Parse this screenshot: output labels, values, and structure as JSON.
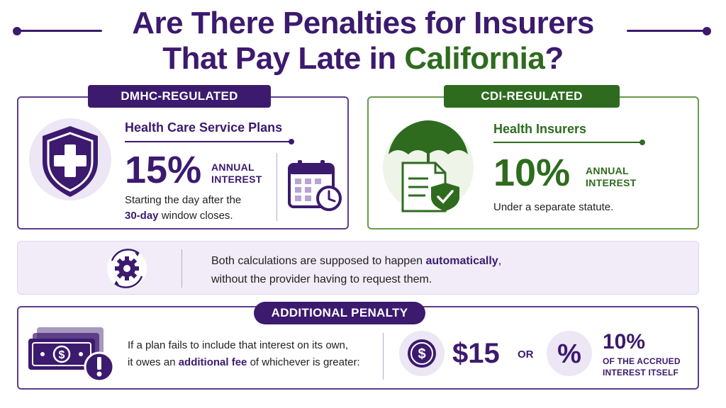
{
  "title": {
    "line1": "Are There Penalties for Insurers",
    "line2_pre": "That Pay Late in ",
    "line2_accent": "California",
    "line2_post": "?"
  },
  "dmhc": {
    "badge": "DMHC-REGULATED",
    "heading": "Health Care Service Plans",
    "rate": "15%",
    "annual": "ANNUAL",
    "interest": "INTEREST",
    "desc_line1": "Starting the day after the",
    "desc_highlight": "30-day",
    "desc_line2_post": " window closes.",
    "shield_icon": "shield-cross-icon",
    "calendar_icon": "calendar-clock-icon"
  },
  "cdi": {
    "badge": "CDI-REGULATED",
    "heading": "Health Insurers",
    "rate": "10%",
    "annual": "ANNUAL",
    "interest": "INTEREST",
    "desc": "Under a separate statute.",
    "umbrella_icon": "umbrella-document-icon"
  },
  "auto": {
    "line1_pre": "Both calculations are supposed to happen ",
    "line1_highlight": "automatically",
    "line1_post": ",",
    "line2": "without the provider having to request them.",
    "icon": "gear-cycle-icon"
  },
  "penalty": {
    "badge": "ADDITIONAL PENALTY",
    "line1": "If a plan fails to include that interest on its own,",
    "line2_pre": "it owes an ",
    "line2_highlight": "additional fee",
    "line2_post": " of whichever is greater:",
    "amount": "$15",
    "or": "OR",
    "pct": "10%",
    "pct_line1": "OF THE ACCRUED",
    "pct_line2": "INTEREST ITSELF",
    "money_icon": "money-warning-icon",
    "dollar_icon": "dollar-coin-icon",
    "percent_icon": "percent-icon"
  },
  "colors": {
    "purple": "#3c1a6e",
    "green": "#2e6b1f",
    "lavender": "#f1ecf7"
  }
}
